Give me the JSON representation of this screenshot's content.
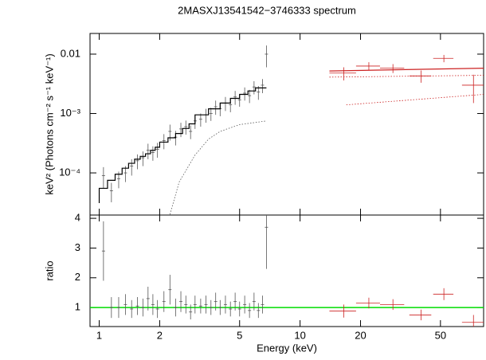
{
  "chart_data": [
    {
      "type": "scatter",
      "title": "2MASXJ13541542−3746333 spectrum",
      "ylabel": "keV² (Photons cm⁻² s⁻¹ keV⁻¹)",
      "log_x": true,
      "log_y": true,
      "xlim": [
        0.9,
        82
      ],
      "ylim": [
        1.95e-05,
        0.0223
      ],
      "yticks": [
        0.01,
        {
          "value": 0.001,
          "label": "10⁻³"
        },
        {
          "value": 0.0001,
          "label": "10⁻⁴"
        }
      ],
      "series": [
        {
          "style": "errorbar",
          "color": "#555555",
          "x": [
            1.05,
            1.15,
            1.25,
            1.35,
            1.45,
            1.55,
            1.65,
            1.75,
            1.85,
            1.95,
            2.1,
            2.25,
            2.4,
            2.55,
            2.7,
            2.85,
            3.0,
            3.2,
            3.4,
            3.6,
            3.8,
            4.0,
            4.25,
            4.5,
            4.75,
            5.0,
            5.3,
            5.6,
            5.9,
            6.2,
            6.5,
            6.8
          ],
          "values": [
            9e-05,
            5e-05,
            8e-05,
            0.0001,
            0.00013,
            0.00016,
            0.00018,
            0.00024,
            0.00022,
            0.00025,
            0.00035,
            0.0005,
            0.0004,
            0.00055,
            0.0006,
            0.0005,
            0.00075,
            0.0008,
            0.00095,
            0.001,
            0.0013,
            0.0012,
            0.0015,
            0.0014,
            0.0019,
            0.0017,
            0.0022,
            0.002,
            0.0028,
            0.0023,
            0.003,
            0.01
          ],
          "yerr": [
            3.5e-05,
            1.8e-05,
            2.5e-05,
            3e-05,
            4e-05,
            4.5e-05,
            5e-05,
            7e-05,
            6e-05,
            7e-05,
            0.0001,
            0.00015,
            0.00011,
            0.00015,
            0.00016,
            0.00013,
            0.0002,
            0.0002,
            0.00025,
            0.00025,
            0.00035,
            0.0003,
            0.0004,
            0.00035,
            0.0005,
            0.0004,
            0.00055,
            0.0005,
            0.0007,
            0.0006,
            0.0008,
            0.004
          ]
        },
        {
          "style": "errorbar",
          "color": "#cc2222",
          "x": [
            16.5,
            22,
            29,
            40,
            52,
            73
          ],
          "xerr": [
            2.5,
            3,
            4,
            5,
            6,
            9
          ],
          "values": [
            0.0048,
            0.0063,
            0.0058,
            0.0043,
            0.0085,
            0.003
          ],
          "yerr": [
            0.0012,
            0.001,
            0.001,
            0.001,
            0.0012,
            0.0015
          ]
        },
        {
          "style": "step",
          "color": "#000000",
          "x": [
            1.0,
            1.1,
            1.2,
            1.3,
            1.4,
            1.5,
            1.6,
            1.7,
            1.8,
            1.9,
            2.0,
            2.2,
            2.4,
            2.6,
            2.8,
            3.0,
            3.5,
            4.0,
            4.5,
            5.0,
            5.5,
            6.0,
            6.8
          ],
          "values": [
            3.1e-05,
            5.5e-05,
            7.5e-05,
            9.5e-05,
            0.00012,
            0.000145,
            0.00017,
            0.00019,
            0.00021,
            0.00024,
            0.00027,
            0.00033,
            0.00039,
            0.00046,
            0.00056,
            0.00067,
            0.00095,
            0.0012,
            0.0015,
            0.0018,
            0.0021,
            0.0024,
            0.0027
          ]
        },
        {
          "style": "dotted",
          "color": "#555555",
          "x": [
            2.25,
            2.5,
            3,
            3.5,
            4,
            5,
            6.8
          ],
          "values": [
            2e-05,
            7e-05,
            0.0002,
            0.00037,
            0.0005,
            0.00065,
            0.00075
          ]
        },
        {
          "style": "line",
          "color": "#cc2222",
          "x": [
            14,
            82
          ],
          "values": [
            0.0052,
            0.0058
          ]
        },
        {
          "style": "dotted",
          "color": "#cc2222",
          "x": [
            14,
            82
          ],
          "values": [
            0.0041,
            0.0044
          ]
        },
        {
          "style": "dotted",
          "color": "#cc2222",
          "x": [
            17,
            82
          ],
          "values": [
            0.0014,
            0.0021
          ]
        }
      ]
    },
    {
      "type": "scatter",
      "ylabel": "ratio",
      "xlabel": "Energy (keV)",
      "log_x": true,
      "xlim": [
        0.9,
        82
      ],
      "xticks": [
        1,
        2,
        5,
        10,
        20,
        50
      ],
      "ylim": [
        0.36,
        4.11
      ],
      "yticks": [
        1,
        2,
        3,
        4
      ],
      "hline": 1,
      "hline_color": "#00dd00",
      "series": [
        {
          "style": "errorbar",
          "color": "#555555",
          "x": [
            1.05,
            1.15,
            1.25,
            1.35,
            1.45,
            1.55,
            1.65,
            1.75,
            1.85,
            1.95,
            2.1,
            2.25,
            2.4,
            2.55,
            2.7,
            2.85,
            3.0,
            3.2,
            3.4,
            3.6,
            3.8,
            4.0,
            4.25,
            4.5,
            4.75,
            5.0,
            5.3,
            5.6,
            5.9,
            6.2,
            6.5,
            6.8
          ],
          "values": [
            2.9,
            1.0,
            1.0,
            1.1,
            0.95,
            1.05,
            1.0,
            1.3,
            1.1,
            0.95,
            1.2,
            1.6,
            1.0,
            1.2,
            1.1,
            0.85,
            1.1,
            1.05,
            1.1,
            1.0,
            1.2,
            1.0,
            1.1,
            0.95,
            1.2,
            0.95,
            1.1,
            0.9,
            1.2,
            0.9,
            1.1,
            3.7
          ],
          "yerr": [
            1.0,
            0.35,
            0.35,
            0.35,
            0.3,
            0.3,
            0.3,
            0.4,
            0.35,
            0.3,
            0.35,
            0.5,
            0.3,
            0.35,
            0.3,
            0.25,
            0.3,
            0.25,
            0.3,
            0.25,
            0.3,
            0.25,
            0.3,
            0.25,
            0.3,
            0.25,
            0.3,
            0.25,
            0.3,
            0.25,
            0.3,
            1.4
          ]
        },
        {
          "style": "errorbar",
          "color": "#cc2222",
          "x": [
            16.5,
            22,
            29,
            40,
            52,
            73
          ],
          "xerr": [
            2.5,
            3,
            4,
            5,
            6,
            9
          ],
          "values": [
            0.88,
            1.15,
            1.1,
            0.75,
            1.45,
            0.5
          ],
          "yerr": [
            0.22,
            0.18,
            0.18,
            0.18,
            0.2,
            0.25
          ]
        }
      ]
    }
  ]
}
